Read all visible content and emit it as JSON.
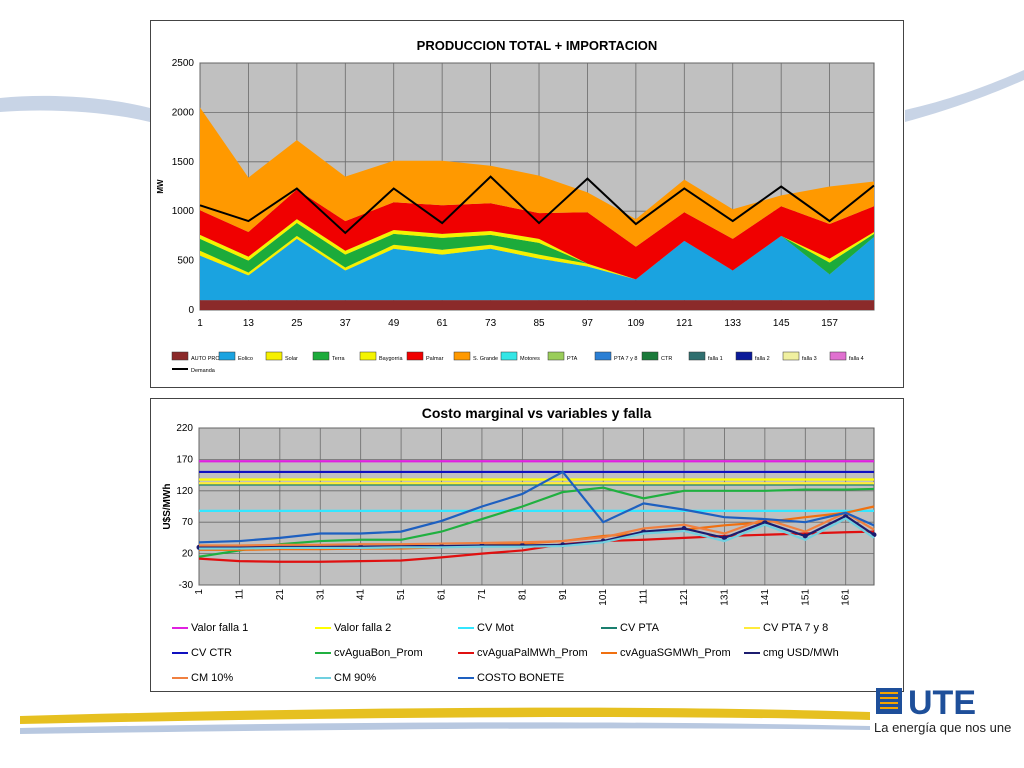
{
  "colors": {
    "accent_orange": "#f2a300",
    "accent_blue": "#1f5fa8",
    "plot_bg": "#c0c0c0"
  },
  "branding": {
    "logo_icon": "ute-logo-icon",
    "logo_text": "UTE",
    "tagline": "La energía que nos une"
  },
  "chart_data": [
    {
      "type": "area",
      "title": "PRODUCCION TOTAL + IMPORTACION",
      "xlabel": "",
      "ylabel": "MW",
      "x": [
        1,
        13,
        25,
        37,
        49,
        61,
        73,
        85,
        97,
        109,
        121,
        133,
        145,
        157,
        168
      ],
      "xlim": [
        1,
        168
      ],
      "ylim": [
        0,
        2500
      ],
      "yticks": [
        0,
        500,
        1000,
        1500,
        2000,
        2500
      ],
      "xticks": [
        1,
        13,
        25,
        37,
        49,
        61,
        73,
        85,
        97,
        109,
        121,
        133,
        145,
        157
      ],
      "grid": true,
      "legend_position": "bottom",
      "series": [
        {
          "name": "AUTO PROD",
          "color": "#8b2a2a",
          "values": [
            100,
            100,
            100,
            100,
            100,
            100,
            100,
            100,
            100,
            100,
            100,
            100,
            100,
            100,
            100
          ]
        },
        {
          "name": "Eolico",
          "color": "#1aa3e0",
          "values": [
            450,
            250,
            620,
            300,
            520,
            460,
            520,
            420,
            340,
            210,
            600,
            300,
            650,
            260,
            640
          ]
        },
        {
          "name": "Solar",
          "color": "#f6f000",
          "values": [
            50,
            30,
            30,
            30,
            40,
            50,
            40,
            40,
            30,
            0,
            0,
            0,
            0,
            0,
            0
          ]
        },
        {
          "name": "Terra",
          "color": "#1cab3b",
          "values": [
            120,
            120,
            130,
            130,
            110,
            120,
            100,
            120,
            0,
            0,
            0,
            0,
            0,
            120,
            30
          ]
        },
        {
          "name": "Baygorria",
          "color": "#f4f400",
          "values": [
            40,
            40,
            40,
            40,
            40,
            40,
            40,
            40,
            0,
            0,
            0,
            0,
            0,
            40,
            20
          ]
        },
        {
          "name": "Palmar",
          "color": "#f00000",
          "values": [
            250,
            250,
            300,
            300,
            280,
            290,
            280,
            260,
            520,
            330,
            290,
            320,
            300,
            350,
            260
          ]
        },
        {
          "name": "S. Grande",
          "color": "#ff9900",
          "values": [
            1040,
            550,
            500,
            450,
            420,
            450,
            380,
            380,
            200,
            280,
            330,
            300,
            110,
            380,
            250
          ]
        },
        {
          "name": "Motores",
          "color": "#33e6e6",
          "values": [
            0,
            0,
            0,
            0,
            0,
            0,
            0,
            0,
            0,
            0,
            0,
            0,
            0,
            0,
            0
          ]
        },
        {
          "name": "PTA",
          "color": "#9acd5a",
          "values": [
            0,
            0,
            0,
            0,
            0,
            0,
            0,
            0,
            0,
            0,
            0,
            0,
            0,
            0,
            0
          ]
        },
        {
          "name": "PTA 7 y 8",
          "color": "#2b7fd4",
          "values": [
            0,
            0,
            0,
            0,
            0,
            0,
            0,
            0,
            0,
            0,
            0,
            0,
            0,
            0,
            0
          ]
        },
        {
          "name": "CTR",
          "color": "#1a7a3a",
          "values": [
            0,
            0,
            0,
            0,
            0,
            0,
            0,
            0,
            0,
            0,
            0,
            0,
            0,
            0,
            0
          ]
        },
        {
          "name": "falla 1",
          "color": "#2f6f6f",
          "values": [
            0,
            0,
            0,
            0,
            0,
            0,
            0,
            0,
            0,
            0,
            0,
            0,
            0,
            0,
            0
          ]
        },
        {
          "name": "falla 2",
          "color": "#0b1a99",
          "values": [
            0,
            0,
            0,
            0,
            0,
            0,
            0,
            0,
            0,
            0,
            0,
            0,
            0,
            0,
            0
          ]
        },
        {
          "name": "falla 3",
          "color": "#f0f0a0",
          "values": [
            0,
            0,
            0,
            0,
            0,
            0,
            0,
            0,
            0,
            0,
            0,
            0,
            0,
            0,
            0
          ]
        },
        {
          "name": "falla 4",
          "color": "#e070d0",
          "values": [
            0,
            0,
            0,
            0,
            0,
            0,
            0,
            0,
            0,
            0,
            0,
            0,
            0,
            0,
            0
          ]
        }
      ],
      "lines": [
        {
          "name": "Demanda",
          "color": "#000000",
          "values": [
            1060,
            900,
            1230,
            780,
            1230,
            880,
            1350,
            880,
            1330,
            870,
            1230,
            900,
            1250,
            900,
            1260
          ]
        }
      ]
    },
    {
      "type": "line",
      "title": "Costo marginal vs variables y falla",
      "xlabel": "",
      "ylabel": "U$S/MWh",
      "x": [
        1,
        11,
        21,
        31,
        41,
        51,
        61,
        71,
        81,
        91,
        101,
        111,
        121,
        131,
        141,
        151,
        161,
        168
      ],
      "xlim": [
        1,
        168
      ],
      "ylim": [
        -30,
        220
      ],
      "yticks": [
        -30,
        20,
        70,
        120,
        170,
        220
      ],
      "xticks": [
        1,
        11,
        21,
        31,
        41,
        51,
        61,
        71,
        81,
        91,
        101,
        111,
        121,
        131,
        141,
        151,
        161
      ],
      "grid": true,
      "legend_position": "bottom",
      "series": [
        {
          "name": "Valor falla 1",
          "color": "#e020e0",
          "values": [
            167,
            167,
            167,
            167,
            167,
            167,
            167,
            167,
            167,
            167,
            167,
            167,
            167,
            167,
            167,
            167,
            167,
            167
          ]
        },
        {
          "name": "Valor falla 2",
          "color": "#ffff00",
          "values": [
            138,
            138,
            138,
            138,
            138,
            138,
            138,
            138,
            138,
            138,
            138,
            138,
            138,
            138,
            138,
            138,
            138,
            138
          ]
        },
        {
          "name": "CV Mot",
          "color": "#33e6ff",
          "values": [
            88,
            88,
            88,
            88,
            88,
            88,
            88,
            88,
            88,
            88,
            88,
            88,
            88,
            88,
            88,
            88,
            88,
            88
          ]
        },
        {
          "name": "CV PTA",
          "color": "#1a7f6f",
          "values": [
            130,
            130,
            130,
            130,
            130,
            130,
            130,
            130,
            130,
            130,
            130,
            130,
            130,
            130,
            130,
            130,
            130,
            130
          ]
        },
        {
          "name": "CV PTA 7 y 8",
          "color": "#ffeb3b",
          "values": [
            132,
            132,
            132,
            132,
            132,
            132,
            132,
            132,
            132,
            132,
            132,
            132,
            132,
            132,
            132,
            132,
            132,
            132
          ]
        },
        {
          "name": "CV CTR",
          "color": "#1010c0",
          "values": [
            150,
            150,
            150,
            150,
            150,
            150,
            150,
            150,
            150,
            150,
            150,
            150,
            150,
            150,
            150,
            150,
            150,
            150
          ]
        },
        {
          "name": "cvAguaBon_Prom",
          "color": "#20b040",
          "values": [
            15,
            25,
            35,
            40,
            42,
            42,
            55,
            75,
            95,
            118,
            125,
            108,
            120,
            120,
            120,
            122,
            122,
            123
          ]
        },
        {
          "name": "cvAguaPalMWh_Prom",
          "color": "#e01010",
          "values": [
            12,
            8,
            7,
            7,
            8,
            9,
            14,
            20,
            25,
            35,
            40,
            42,
            45,
            48,
            50,
            52,
            54,
            55
          ]
        },
        {
          "name": "cvAguaSGMWh_Prom",
          "color": "#f07010",
          "values": [
            26,
            26,
            27,
            27,
            28,
            28,
            30,
            33,
            36,
            40,
            48,
            52,
            58,
            65,
            70,
            78,
            85,
            95
          ]
        },
        {
          "name": "cmg USD/MWh",
          "color": "#1c1c6f",
          "values": [
            30,
            30,
            31,
            31,
            31,
            32,
            32,
            33,
            33,
            34,
            40,
            55,
            60,
            45,
            70,
            48,
            80,
            50
          ]
        },
        {
          "name": "CM 10%",
          "color": "#f08040",
          "values": [
            33,
            33,
            34,
            34,
            35,
            35,
            36,
            37,
            38,
            40,
            46,
            60,
            66,
            52,
            75,
            55,
            85,
            58
          ]
        },
        {
          "name": "CM 90%",
          "color": "#70d0e0",
          "values": [
            28,
            28,
            29,
            29,
            29,
            30,
            30,
            31,
            31,
            32,
            38,
            52,
            56,
            40,
            66,
            42,
            76,
            45
          ]
        },
        {
          "name": "COSTO BONETE",
          "color": "#1e60c0",
          "values": [
            38,
            40,
            45,
            52,
            52,
            55,
            72,
            95,
            115,
            150,
            70,
            100,
            90,
            78,
            75,
            70,
            85,
            65
          ]
        }
      ]
    }
  ]
}
